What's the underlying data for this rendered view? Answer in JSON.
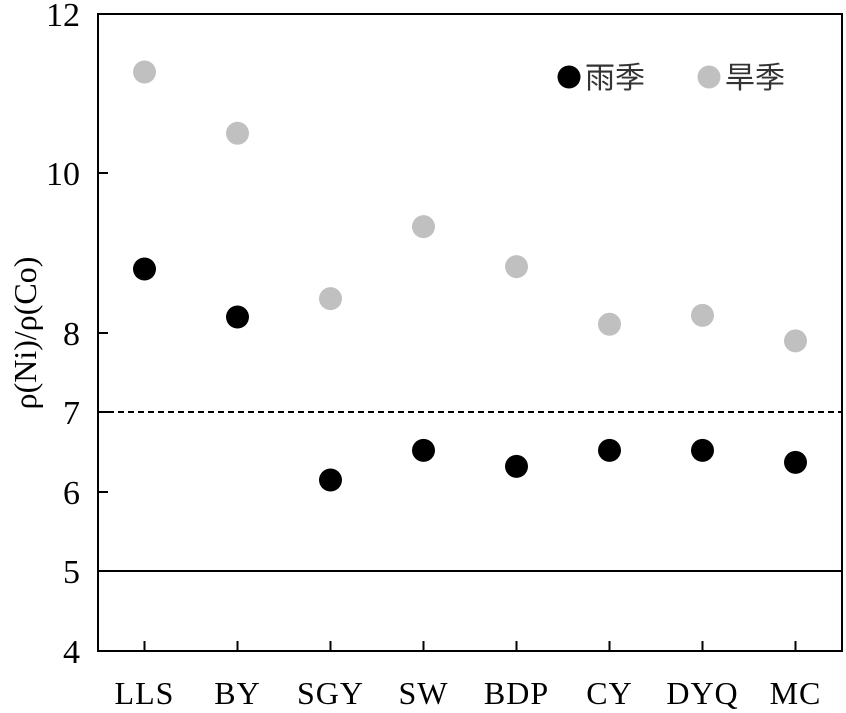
{
  "chart_data": {
    "type": "scatter",
    "title": "",
    "xlabel": "",
    "ylabel": "ρ(Ni)/ρ(Co)",
    "ylim": [
      4,
      12
    ],
    "yticks": [
      4,
      5,
      6,
      7,
      8,
      10,
      12
    ],
    "categories": [
      "LLS",
      "BY",
      "SGY",
      "SW",
      "BDP",
      "CY",
      "DYQ",
      "MC"
    ],
    "series": [
      {
        "name": "雨季",
        "color": "#000000",
        "values": [
          8.8,
          8.2,
          6.15,
          6.52,
          6.32,
          6.52,
          6.52,
          6.37
        ]
      },
      {
        "name": "旱季",
        "color": "#c0c0c0",
        "values": [
          11.27,
          10.5,
          8.43,
          9.33,
          8.83,
          8.11,
          8.22,
          7.9
        ]
      }
    ],
    "reference_lines": [
      {
        "y": 7,
        "style": "dashed"
      },
      {
        "y": 5,
        "style": "solid"
      }
    ],
    "legend": "top-right",
    "grid": false
  }
}
